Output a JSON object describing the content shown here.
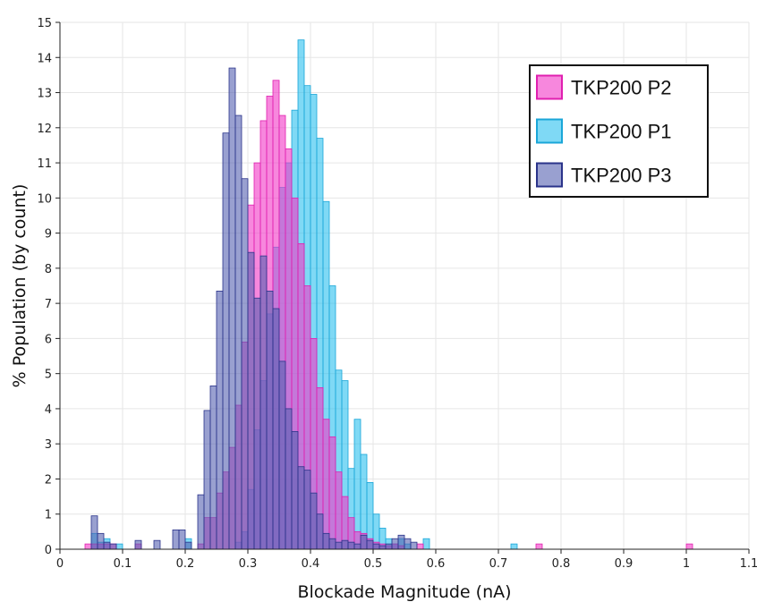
{
  "chart_data": {
    "type": "bar",
    "title": "",
    "xlabel": "Blockade Magnitude (nA)",
    "ylabel": "% Population (by count)",
    "xlim": [
      0,
      1.1
    ],
    "ylim": [
      0,
      15
    ],
    "bin_width": 0.01,
    "x_ticks": [
      "0",
      "0.1",
      "0.2",
      "0.3",
      "0.4",
      "0.5",
      "0.6",
      "0.7",
      "0.8",
      "0.9",
      "1",
      "1.1"
    ],
    "y_ticks": [
      "0",
      "1",
      "2",
      "3",
      "4",
      "5",
      "6",
      "7",
      "8",
      "9",
      "10",
      "11",
      "12",
      "13",
      "14",
      "15"
    ],
    "grid": true,
    "legend_position": "top-right",
    "series": [
      {
        "name": "TKP200 P1",
        "fill": "#29c0ef",
        "stroke": "#1aa6d8",
        "bins": [
          [
            0.05,
            0.45
          ],
          [
            0.06,
            0.2
          ],
          [
            0.07,
            0.3
          ],
          [
            0.09,
            0.15
          ],
          [
            0.2,
            0.3
          ],
          [
            0.28,
            0.2
          ],
          [
            0.29,
            0.5
          ],
          [
            0.3,
            1.7
          ],
          [
            0.31,
            3.4
          ],
          [
            0.32,
            4.8
          ],
          [
            0.33,
            6.7
          ],
          [
            0.34,
            8.6
          ],
          [
            0.35,
            10.3
          ],
          [
            0.36,
            11.0
          ],
          [
            0.37,
            12.5
          ],
          [
            0.38,
            14.5
          ],
          [
            0.39,
            13.2
          ],
          [
            0.4,
            12.95
          ],
          [
            0.41,
            11.7
          ],
          [
            0.42,
            9.9
          ],
          [
            0.43,
            7.5
          ],
          [
            0.44,
            5.1
          ],
          [
            0.45,
            4.8
          ],
          [
            0.46,
            2.3
          ],
          [
            0.47,
            3.7
          ],
          [
            0.48,
            2.7
          ],
          [
            0.49,
            1.9
          ],
          [
            0.5,
            1.0
          ],
          [
            0.51,
            0.6
          ],
          [
            0.52,
            0.3
          ],
          [
            0.53,
            0.15
          ],
          [
            0.54,
            0.3
          ],
          [
            0.55,
            0.15
          ],
          [
            0.58,
            0.3
          ],
          [
            0.72,
            0.15
          ]
        ]
      },
      {
        "name": "TKP200 P2",
        "fill": "#f237c6",
        "stroke": "#e01fb0",
        "bins": [
          [
            0.04,
            0.15
          ],
          [
            0.05,
            0.15
          ],
          [
            0.06,
            0.15
          ],
          [
            0.07,
            0.15
          ],
          [
            0.08,
            0.15
          ],
          [
            0.12,
            0.15
          ],
          [
            0.22,
            0.15
          ],
          [
            0.23,
            0.9
          ],
          [
            0.24,
            0.9
          ],
          [
            0.25,
            1.6
          ],
          [
            0.26,
            2.2
          ],
          [
            0.27,
            2.9
          ],
          [
            0.28,
            4.1
          ],
          [
            0.29,
            5.9
          ],
          [
            0.3,
            9.8
          ],
          [
            0.31,
            11.0
          ],
          [
            0.32,
            12.2
          ],
          [
            0.33,
            12.9
          ],
          [
            0.34,
            13.35
          ],
          [
            0.35,
            12.35
          ],
          [
            0.36,
            11.4
          ],
          [
            0.37,
            10.0
          ],
          [
            0.38,
            8.7
          ],
          [
            0.39,
            7.5
          ],
          [
            0.4,
            6.0
          ],
          [
            0.41,
            4.6
          ],
          [
            0.42,
            3.7
          ],
          [
            0.43,
            3.2
          ],
          [
            0.44,
            2.2
          ],
          [
            0.45,
            1.5
          ],
          [
            0.46,
            0.9
          ],
          [
            0.47,
            0.5
          ],
          [
            0.48,
            0.45
          ],
          [
            0.49,
            0.3
          ],
          [
            0.5,
            0.2
          ],
          [
            0.51,
            0.15
          ],
          [
            0.52,
            0.1
          ],
          [
            0.53,
            0.15
          ],
          [
            0.54,
            0.1
          ],
          [
            0.57,
            0.15
          ],
          [
            0.76,
            0.15
          ],
          [
            1.0,
            0.15
          ]
        ]
      },
      {
        "name": "TKP200 P3",
        "fill": "#5560b0",
        "stroke": "#2a338a",
        "bins": [
          [
            0.05,
            0.95
          ],
          [
            0.06,
            0.45
          ],
          [
            0.07,
            0.2
          ],
          [
            0.08,
            0.15
          ],
          [
            0.12,
            0.25
          ],
          [
            0.15,
            0.25
          ],
          [
            0.18,
            0.55
          ],
          [
            0.19,
            0.55
          ],
          [
            0.2,
            0.2
          ],
          [
            0.22,
            1.55
          ],
          [
            0.23,
            3.95
          ],
          [
            0.24,
            4.65
          ],
          [
            0.25,
            7.35
          ],
          [
            0.26,
            11.85
          ],
          [
            0.27,
            13.7
          ],
          [
            0.28,
            12.35
          ],
          [
            0.29,
            10.55
          ],
          [
            0.3,
            8.45
          ],
          [
            0.31,
            7.15
          ],
          [
            0.32,
            8.35
          ],
          [
            0.33,
            7.35
          ],
          [
            0.34,
            6.85
          ],
          [
            0.35,
            5.35
          ],
          [
            0.36,
            4.0
          ],
          [
            0.37,
            3.35
          ],
          [
            0.38,
            2.35
          ],
          [
            0.39,
            2.25
          ],
          [
            0.4,
            1.6
          ],
          [
            0.41,
            1.0
          ],
          [
            0.42,
            0.45
          ],
          [
            0.43,
            0.3
          ],
          [
            0.44,
            0.2
          ],
          [
            0.45,
            0.25
          ],
          [
            0.46,
            0.2
          ],
          [
            0.47,
            0.15
          ],
          [
            0.48,
            0.4
          ],
          [
            0.49,
            0.25
          ],
          [
            0.5,
            0.15
          ],
          [
            0.51,
            0.1
          ],
          [
            0.52,
            0.15
          ],
          [
            0.53,
            0.3
          ],
          [
            0.54,
            0.4
          ],
          [
            0.55,
            0.3
          ],
          [
            0.56,
            0.2
          ]
        ]
      }
    ],
    "legend_order": [
      "TKP200 P2",
      "TKP200 P1",
      "TKP200 P3"
    ]
  }
}
